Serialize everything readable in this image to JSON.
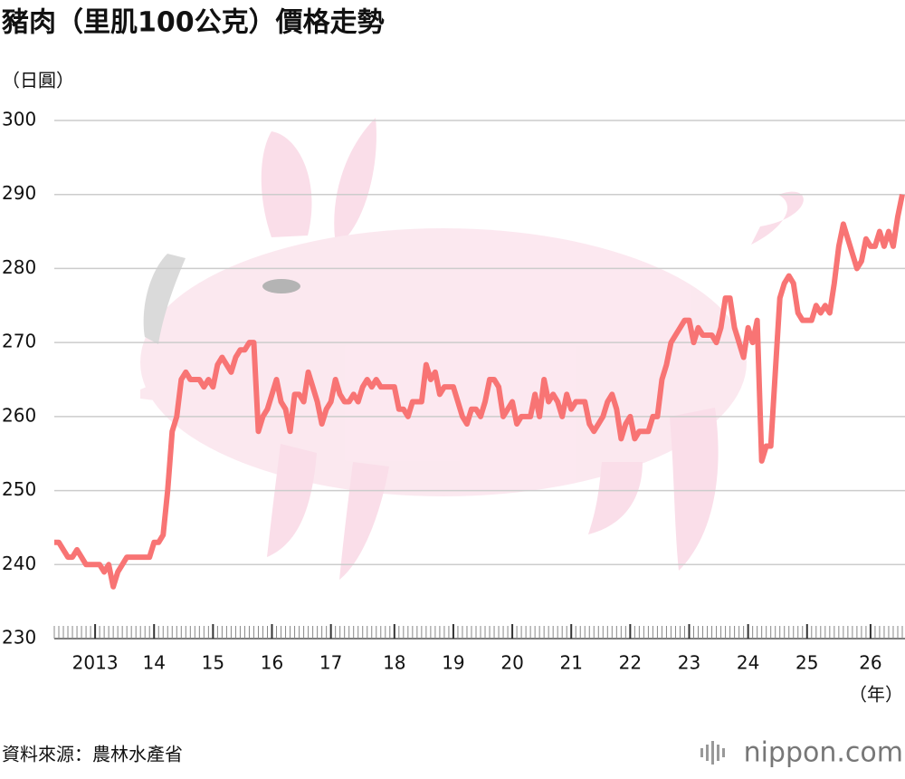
{
  "chart_data": {
    "type": "line",
    "title": "豬肉（里肌100公克）價格走勢",
    "y_unit": "（日圓）",
    "x_unit": "（年）",
    "source": "資料來源：農林水產省",
    "brand": "nippon.com",
    "color": "#f87474",
    "grid": true,
    "ylim": [
      230,
      300
    ],
    "yticks": [
      230,
      240,
      250,
      260,
      270,
      280,
      290,
      300
    ],
    "categories": [
      null,
      null,
      null,
      null,
      null,
      null,
      null,
      null,
      null,
      "2013",
      null,
      null,
      null,
      null,
      null,
      null,
      null,
      null,
      null,
      null,
      null,
      null,
      "14",
      null,
      null,
      null,
      null,
      null,
      null,
      null,
      null,
      null,
      null,
      null,
      null,
      "15",
      null,
      null,
      null,
      null,
      null,
      null,
      null,
      null,
      null,
      null,
      null,
      null,
      "16",
      null,
      null,
      null,
      null,
      null,
      null,
      null,
      null,
      null,
      null,
      null,
      null,
      "17",
      null,
      null,
      null,
      null,
      null,
      null,
      null,
      null,
      null,
      null,
      null,
      null,
      null,
      "18",
      null,
      null,
      null,
      null,
      null,
      null,
      null,
      null,
      null,
      null,
      null,
      null,
      "19",
      null,
      null,
      null,
      null,
      null,
      null,
      null,
      null,
      null,
      null,
      null,
      null,
      "20",
      null,
      null,
      null,
      null,
      null,
      null,
      null,
      null,
      null,
      null,
      null,
      null,
      "21",
      null,
      null,
      null,
      null,
      null,
      null,
      null,
      null,
      null,
      null,
      null,
      null,
      "22",
      null,
      null,
      null,
      null,
      null,
      null,
      null,
      null,
      null,
      null,
      null,
      null,
      "23",
      null,
      null,
      null,
      null,
      null,
      null,
      null,
      null,
      null,
      null,
      null,
      null,
      "24",
      null,
      null,
      null,
      null,
      null,
      null,
      null,
      null,
      null,
      null,
      null,
      null,
      "25",
      null,
      null,
      null,
      null,
      null,
      null,
      null,
      null,
      null,
      null,
      null,
      null,
      null,
      "26",
      null,
      null,
      null,
      null,
      null,
      null,
      null
    ],
    "values": [
      243,
      243,
      242,
      241,
      241,
      242,
      241,
      240,
      240,
      240,
      240,
      239,
      240,
      237,
      239,
      240,
      241,
      241,
      241,
      241,
      241,
      241,
      243,
      243,
      244,
      250,
      258,
      260,
      265,
      266,
      265,
      265,
      265,
      264,
      265,
      264,
      267,
      268,
      267,
      266,
      268,
      269,
      269,
      270,
      270,
      258,
      260,
      261,
      263,
      265,
      262,
      261,
      258,
      263,
      263,
      262,
      266,
      264,
      262,
      259,
      261,
      262,
      265,
      263,
      262,
      262,
      263,
      262,
      264,
      265,
      264,
      265,
      264,
      264,
      264,
      264,
      261,
      261,
      260,
      262,
      262,
      262,
      267,
      265,
      266,
      263,
      264,
      264,
      264,
      262,
      260,
      259,
      261,
      261,
      260,
      262,
      265,
      265,
      264,
      260,
      261,
      262,
      259,
      260,
      260,
      260,
      263,
      260,
      265,
      262,
      263,
      262,
      260,
      263,
      261,
      262,
      262,
      262,
      259,
      258,
      259,
      260,
      262,
      263,
      261,
      257,
      259,
      260,
      257,
      258,
      258,
      258,
      260,
      260,
      265,
      267,
      270,
      271,
      272,
      273,
      273,
      270,
      272,
      271,
      271,
      271,
      270,
      272,
      276,
      276,
      272,
      270,
      268,
      272,
      270,
      273,
      254,
      256,
      256,
      266,
      276,
      278,
      279,
      278,
      274,
      273,
      273,
      273,
      275,
      274,
      275,
      274,
      278,
      283,
      286,
      284,
      282,
      280,
      281,
      284,
      283,
      283,
      285,
      283,
      285,
      283,
      287,
      290
    ]
  }
}
